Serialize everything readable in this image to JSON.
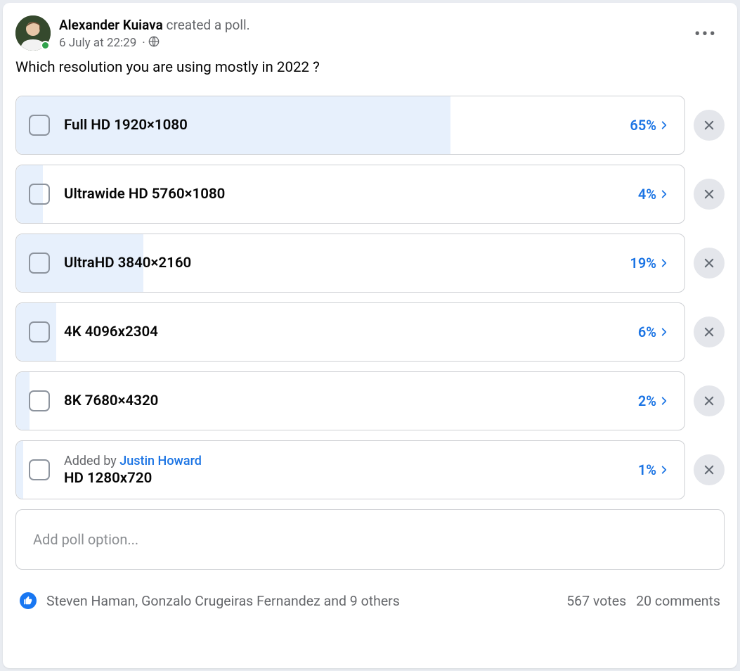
{
  "header": {
    "author_name": "Alexander Kuiava",
    "action_text": " created a poll.",
    "timestamp": "6 July at 22:29",
    "privacy_icon": "globe",
    "online": true
  },
  "question": "Which resolution you are using mostly in 2022 ?",
  "colors": {
    "fill_bg": "#e7f0fc",
    "accent": "#1b74e4",
    "border": "#ced0d4",
    "muted": "#65676b",
    "remove_btn_bg": "#e4e6eb",
    "like_bg": "#1877f2"
  },
  "options": [
    {
      "label": "Full HD 1920×1080",
      "pct_text": "65%",
      "pct": 65,
      "added_by": null
    },
    {
      "label": "Ultrawide HD 5760×1080",
      "pct_text": "4%",
      "pct": 4,
      "added_by": null
    },
    {
      "label": "UltraHD 3840×2160",
      "pct_text": "19%",
      "pct": 19,
      "added_by": null
    },
    {
      "label": "4K 4096x2304",
      "pct_text": "6%",
      "pct": 6,
      "added_by": null
    },
    {
      "label": "8K 7680×4320",
      "pct_text": "2%",
      "pct": 2,
      "added_by": null
    },
    {
      "label": "HD 1280x720",
      "pct_text": "1%",
      "pct": 1,
      "added_by": "Justin Howard",
      "added_by_prefix": "Added by "
    }
  ],
  "add_option_placeholder": "Add poll option...",
  "footer": {
    "reaction_icon": "like",
    "reactors_text": "Steven Haman, Gonzalo Crugeiras Fernandez and 9 others",
    "votes_text": "567 votes",
    "comments_text": "20 comments"
  }
}
